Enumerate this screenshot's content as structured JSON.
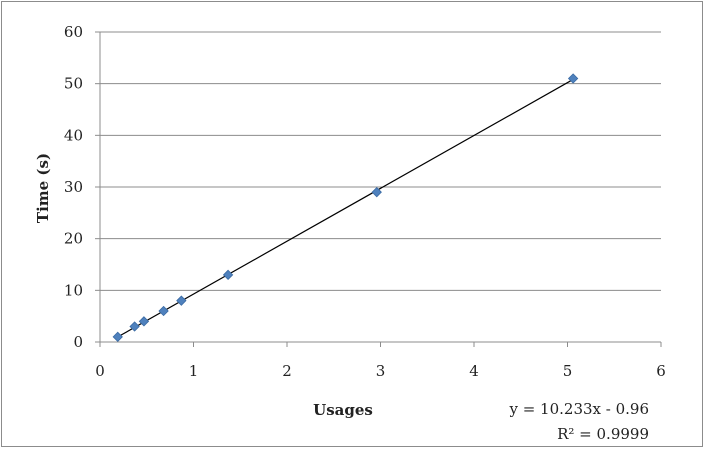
{
  "chart_data": {
    "type": "scatter",
    "xlabel": "Usages",
    "ylabel": "Time (s)",
    "xlim": [
      0,
      6
    ],
    "ylim": [
      0,
      60
    ],
    "xticks": [
      "0",
      "1",
      "2",
      "3",
      "4",
      "5",
      "6"
    ],
    "yticks": [
      "0",
      "10",
      "20",
      "30",
      "40",
      "50",
      "60"
    ],
    "grid": "horizontal",
    "marker_color": "#4f81bd",
    "series": [
      {
        "x": [
          0.19,
          0.37,
          0.47,
          0.68,
          0.87,
          1.37,
          2.96,
          5.06
        ],
        "y": [
          1,
          3,
          4,
          6,
          8,
          13,
          29,
          51
        ]
      }
    ],
    "trendline": {
      "slope": 10.233,
      "intercept": -0.96,
      "x_range": [
        0.19,
        5.06
      ],
      "equation": "y = 10.233x - 0.96",
      "r_squared": "R² = 0.9999"
    }
  }
}
